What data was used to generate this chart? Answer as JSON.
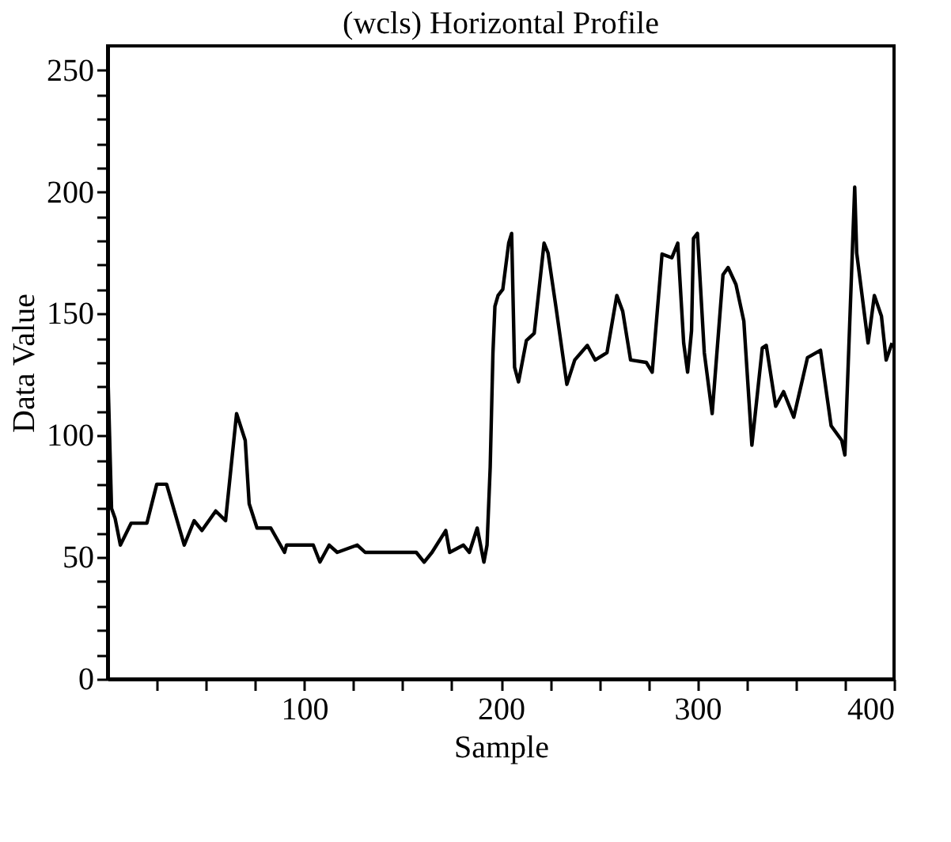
{
  "chart_data": {
    "type": "line",
    "title": "(wcls) Horizontal Profile",
    "xlabel": "Sample",
    "ylabel": "Data Value",
    "series": [
      {
        "color": "#000000",
        "x": [
          0,
          1,
          2,
          3.8,
          6.5,
          12,
          20,
          25,
          30,
          39,
          44,
          48,
          55,
          60,
          65.6,
          70,
          72,
          76,
          83,
          90,
          91,
          104.6,
          108,
          112.7,
          116.8,
          127,
          131,
          157,
          161,
          165,
          172,
          174,
          181,
          184,
          188,
          191.4,
          193,
          194.6,
          196,
          197,
          198.6,
          201,
          204,
          205.5,
          207,
          209,
          213,
          217,
          222,
          224,
          228,
          233.6,
          237.6,
          244,
          248,
          254,
          259,
          262,
          266,
          274,
          277,
          282,
          287,
          290,
          293,
          295,
          297,
          298,
          300,
          303.5,
          307.5,
          313,
          315.6,
          319.6,
          323.6,
          327.7,
          333,
          335,
          339.8,
          343.8,
          349,
          356,
          362.6,
          368,
          373.4,
          375,
          377,
          380,
          381,
          386.8,
          390,
          393.6,
          396,
          399
        ],
        "values": [
          130,
          100,
          70,
          66,
          55,
          64,
          64,
          80,
          80,
          55,
          65,
          61,
          69,
          65,
          109,
          98,
          72,
          62,
          62,
          52,
          55,
          55,
          48,
          55,
          52,
          55,
          52,
          52,
          48,
          52,
          61,
          52,
          55,
          52,
          62,
          48,
          55,
          87,
          134,
          153,
          157.5,
          160,
          179,
          183,
          128,
          122,
          139,
          142,
          179,
          175,
          153,
          121,
          131,
          137,
          131,
          134,
          157.5,
          151,
          131,
          130,
          126,
          174.5,
          173,
          179,
          138,
          126,
          143,
          181,
          183,
          134,
          109,
          166,
          169,
          162,
          147,
          96,
          136,
          137,
          112,
          118,
          107.5,
          132,
          135,
          104,
          98,
          92,
          136,
          202,
          175,
          138,
          157.5,
          149,
          131,
          138
        ]
      }
    ],
    "xlim": [
      0,
      400
    ],
    "xticks": [
      {
        "value": 25,
        "label": null
      },
      {
        "value": 50,
        "label": null
      },
      {
        "value": 75,
        "label": null
      },
      100,
      {
        "value": 125,
        "label": null
      },
      {
        "value": 150,
        "label": null
      },
      {
        "value": 175,
        "label": null
      },
      200,
      {
        "value": 225,
        "label": null
      },
      {
        "value": 250,
        "label": null
      },
      {
        "value": 275,
        "label": null
      },
      300,
      {
        "value": 325,
        "label": null
      },
      {
        "value": 350,
        "label": null
      },
      {
        "value": 375,
        "label": null
      },
      400
    ],
    "ylim": [
      0,
      260
    ],
    "yticks": [
      0,
      {
        "value": 10,
        "label": null
      },
      {
        "value": 20,
        "label": null
      },
      {
        "value": 30,
        "label": null
      },
      {
        "value": 40,
        "label": null
      },
      50,
      {
        "value": 60,
        "label": null
      },
      {
        "value": 70,
        "label": null
      },
      {
        "value": 80,
        "label": null
      },
      {
        "value": 90,
        "label": null
      },
      100,
      {
        "value": 110,
        "label": null
      },
      {
        "value": 120,
        "label": null
      },
      {
        "value": 130,
        "label": null
      },
      {
        "value": 140,
        "label": null
      },
      150,
      {
        "value": 160,
        "label": null
      },
      {
        "value": 170,
        "label": null
      },
      {
        "value": 180,
        "label": null
      },
      {
        "value": 190,
        "label": null
      },
      200,
      {
        "value": 210,
        "label": null
      },
      {
        "value": 220,
        "label": null
      },
      {
        "value": 230,
        "label": null
      },
      {
        "value": 240,
        "label": null
      },
      250
    ],
    "grid": false,
    "line_style": "solid",
    "marker": "none"
  }
}
